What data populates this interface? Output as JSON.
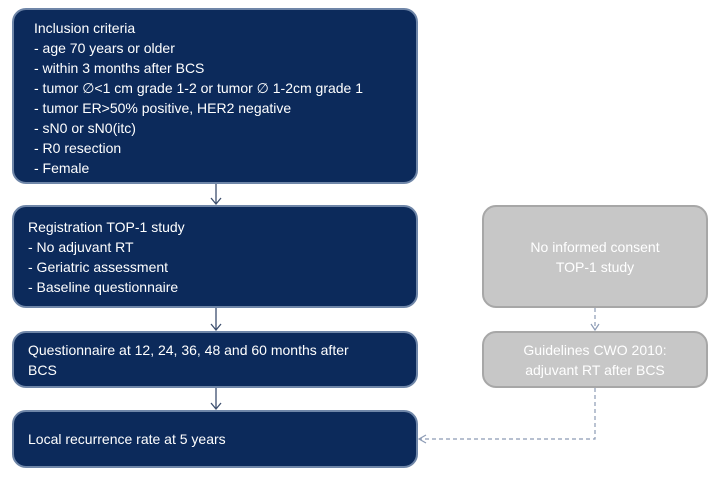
{
  "inclusion": {
    "title": "Inclusion criteria",
    "items": [
      "- age 70 years or older",
      "- within 3 months after BCS",
      "- tumor ∅<1 cm grade 1-2 or tumor ∅ 1-2cm grade 1",
      "- tumor ER>50% positive, HER2 negative",
      "- sN0 or sN0(itc)",
      "- R0 resection",
      "- Female"
    ]
  },
  "registration": {
    "title": "Registration TOP-1 study",
    "items": [
      "- No adjuvant RT",
      "- Geriatric assessment",
      "- Baseline questionnaire"
    ]
  },
  "questionnaire": {
    "line1": "Questionnaire at 12, 24, 36, 48 and 60 months after",
    "line2": "BCS"
  },
  "outcome": {
    "text": "Local recurrence rate at 5 years"
  },
  "no_consent": {
    "line1": "No informed consent",
    "line2": "TOP-1 study"
  },
  "guidelines": {
    "line1": "Guidelines CWO 2010:",
    "line2": "adjuvant RT after BCS"
  },
  "colors": {
    "dark_box": "#0c2a5b",
    "gray_box": "#c7c7c7",
    "border": "#6f86a8",
    "arrow": "#8c9bb5"
  }
}
